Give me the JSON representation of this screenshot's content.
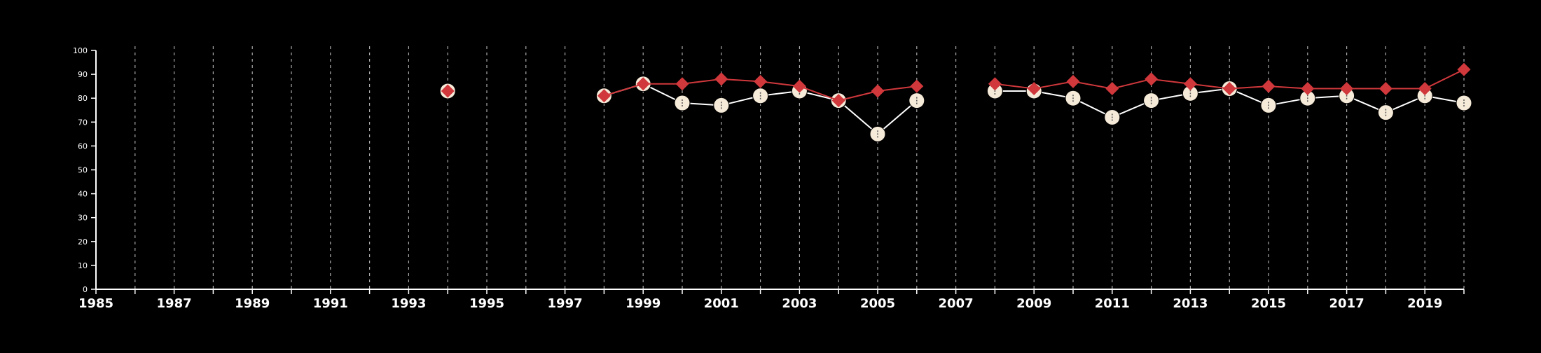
{
  "chart_data": {
    "type": "line",
    "title": "",
    "xlabel": "",
    "ylabel": "",
    "xlim": [
      1985,
      2020
    ],
    "ylim": [
      0,
      100
    ],
    "x_ticks": [
      1985,
      1986,
      1987,
      1988,
      1989,
      1990,
      1991,
      1992,
      1993,
      1994,
      1995,
      1996,
      1997,
      1998,
      1999,
      2000,
      2001,
      2002,
      2003,
      2004,
      2005,
      2006,
      2007,
      2008,
      2009,
      2010,
      2011,
      2012,
      2013,
      2014,
      2015,
      2016,
      2017,
      2018,
      2019,
      2020
    ],
    "x_tick_labels": [
      "1985",
      "1987",
      "1989",
      "1991",
      "1993",
      "1995",
      "1997",
      "1999",
      "2001",
      "2003",
      "2005",
      "2007",
      "2009",
      "2011",
      "2013",
      "2015",
      "2017",
      "2019"
    ],
    "y_ticks": [
      0,
      10,
      20,
      30,
      40,
      50,
      60,
      70,
      80,
      90,
      100
    ],
    "vertical_dashed_grid": true,
    "background": "#000000",
    "axis_color": "#ffffff",
    "series": [
      {
        "marker": "circle",
        "color": "#f6ead8",
        "line_color": "#ffffff",
        "points": [
          [
            1994,
            83
          ],
          [
            1998,
            81
          ],
          [
            1999,
            86
          ],
          [
            2000,
            78
          ],
          [
            2001,
            77
          ],
          [
            2002,
            81
          ],
          [
            2003,
            83
          ],
          [
            2004,
            79
          ],
          [
            2005,
            65
          ],
          [
            2006,
            79
          ],
          [
            2008,
            83
          ],
          [
            2009,
            83
          ],
          [
            2010,
            80
          ],
          [
            2011,
            72
          ],
          [
            2012,
            79
          ],
          [
            2013,
            82
          ],
          [
            2014,
            84
          ],
          [
            2015,
            77
          ],
          [
            2016,
            80
          ],
          [
            2017,
            81
          ],
          [
            2018,
            74
          ],
          [
            2019,
            81
          ],
          [
            2020,
            78
          ]
        ]
      },
      {
        "marker": "diamond",
        "color": "#d0383c",
        "line_color": "#d0383c",
        "points": [
          [
            1994,
            83
          ],
          [
            1998,
            81
          ],
          [
            1999,
            86
          ],
          [
            2000,
            86
          ],
          [
            2001,
            88
          ],
          [
            2002,
            87
          ],
          [
            2003,
            85
          ],
          [
            2004,
            79
          ],
          [
            2005,
            83
          ],
          [
            2006,
            85
          ],
          [
            2008,
            86
          ],
          [
            2009,
            84
          ],
          [
            2010,
            87
          ],
          [
            2011,
            84
          ],
          [
            2012,
            88
          ],
          [
            2013,
            86
          ],
          [
            2014,
            84
          ],
          [
            2015,
            85
          ],
          [
            2016,
            84
          ],
          [
            2017,
            84
          ],
          [
            2018,
            84
          ],
          [
            2019,
            84
          ],
          [
            2020,
            92
          ]
        ]
      }
    ]
  }
}
